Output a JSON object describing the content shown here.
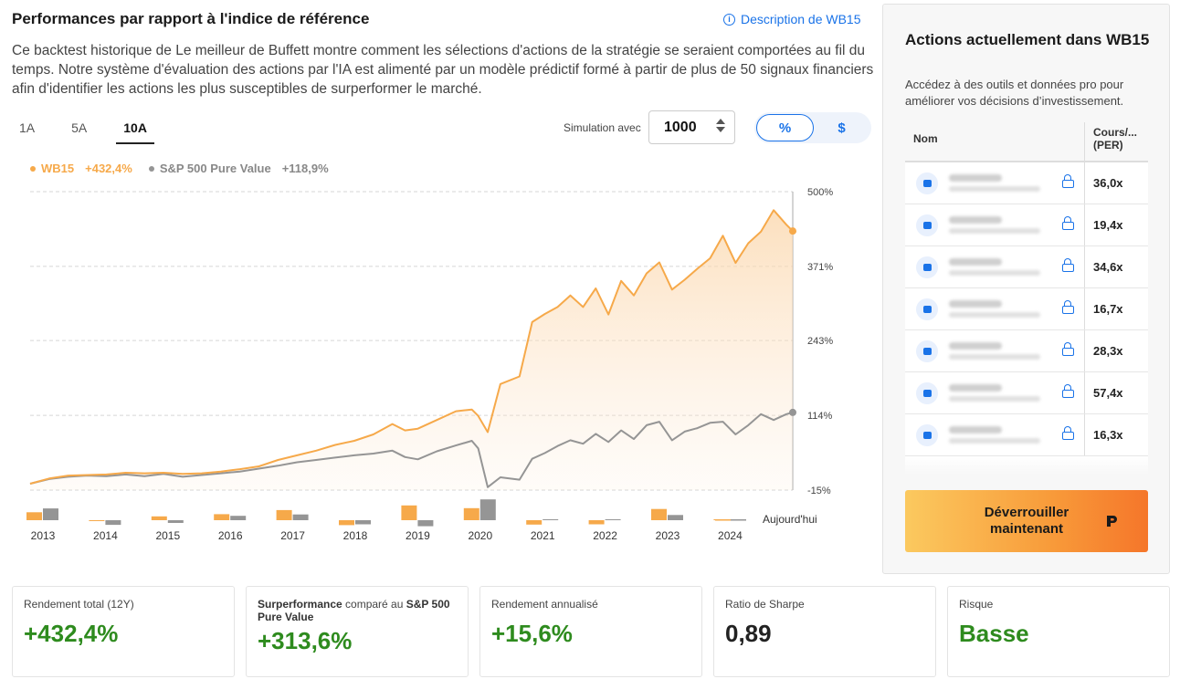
{
  "header": {
    "title": "Performances par rapport à l'indice de référence",
    "desc_link": "Description de WB15",
    "intro": "Ce backtest historique de Le meilleur de Buffett montre comment les sélections d'actions de la stratégie se seraient comportées au fil du temps. Notre système d'évaluation des actions par l'IA est alimenté par un modèle prédictif formé à partir de plus de 50 signaux financiers afin d'identifier les actions les plus susceptibles de surperformer le marché."
  },
  "periods": [
    {
      "label": "1A",
      "active": false
    },
    {
      "label": "5A",
      "active": false
    },
    {
      "label": "10A",
      "active": true
    }
  ],
  "simulation": {
    "label": "Simulation avec",
    "value": "1000"
  },
  "unit_toggle": {
    "percent": "%",
    "dollar": "$",
    "active": "percent"
  },
  "colors": {
    "strategy": "#f6a94a",
    "benchmark": "#959595",
    "accent": "#1a73e8",
    "positive": "#2e8b1e"
  },
  "legend": {
    "strategy_name": "WB15",
    "strategy_value": "+432,4%",
    "benchmark_name": "S&P 500 Pure Value",
    "benchmark_value": "+118,9%"
  },
  "chart_data": {
    "type": "line",
    "x_ticks": [
      "2013",
      "2014",
      "2015",
      "2016",
      "2017",
      "2018",
      "2019",
      "2020",
      "2021",
      "2022",
      "2023",
      "2024",
      "Aujourd'hui"
    ],
    "y_ticks": [
      "500%",
      "371%",
      "243%",
      "114%",
      "-15%"
    ],
    "ylim": [
      -15,
      500
    ],
    "x_range": [
      2013,
      2025.0
    ],
    "grid": true,
    "series": [
      {
        "name": "WB15",
        "x": [
          2013.0,
          2013.3,
          2013.6,
          2013.9,
          2014.2,
          2014.5,
          2014.8,
          2015.1,
          2015.4,
          2015.7,
          2016.0,
          2016.3,
          2016.6,
          2016.9,
          2017.2,
          2017.5,
          2017.8,
          2018.1,
          2018.4,
          2018.7,
          2018.9,
          2019.1,
          2019.4,
          2019.7,
          2019.95,
          2020.05,
          2020.2,
          2020.4,
          2020.7,
          2020.9,
          2021.1,
          2021.3,
          2021.5,
          2021.7,
          2021.9,
          2022.1,
          2022.3,
          2022.5,
          2022.7,
          2022.9,
          2023.1,
          2023.3,
          2023.5,
          2023.7,
          2023.9,
          2024.1,
          2024.3,
          2024.5,
          2024.7,
          2024.9,
          2025.0
        ],
        "values": [
          -4,
          5,
          10,
          11,
          12,
          15,
          14,
          15,
          13,
          14,
          17,
          21,
          26,
          37,
          45,
          53,
          63,
          70,
          81,
          99,
          88,
          91,
          106,
          121,
          124,
          113,
          85,
          168,
          181,
          275,
          289,
          301,
          321,
          301,
          333,
          288,
          346,
          321,
          359,
          378,
          331,
          348,
          367,
          385,
          424,
          377,
          411,
          431,
          468,
          443,
          432
        ]
      },
      {
        "name": "S&P 500 Pure Value",
        "x": [
          2013.0,
          2013.3,
          2013.6,
          2013.9,
          2014.2,
          2014.5,
          2014.8,
          2015.1,
          2015.4,
          2015.7,
          2016.0,
          2016.3,
          2016.6,
          2016.9,
          2017.2,
          2017.5,
          2017.8,
          2018.1,
          2018.4,
          2018.7,
          2018.9,
          2019.1,
          2019.4,
          2019.7,
          2019.95,
          2020.05,
          2020.2,
          2020.4,
          2020.7,
          2020.9,
          2021.1,
          2021.3,
          2021.5,
          2021.7,
          2021.9,
          2022.1,
          2022.3,
          2022.5,
          2022.7,
          2022.9,
          2023.1,
          2023.3,
          2023.5,
          2023.7,
          2023.9,
          2024.1,
          2024.3,
          2024.5,
          2024.7,
          2024.9,
          2025.0
        ],
        "values": [
          -4,
          4,
          8,
          10,
          9,
          12,
          9,
          13,
          8,
          11,
          14,
          17,
          22,
          27,
          33,
          37,
          41,
          45,
          48,
          53,
          42,
          38,
          52,
          62,
          70,
          57,
          -10,
          7,
          3,
          39,
          49,
          61,
          71,
          65,
          82,
          68,
          88,
          73,
          97,
          103,
          71,
          86,
          92,
          101,
          103,
          81,
          97,
          116,
          106,
          116,
          119
        ]
      }
    ],
    "annual_bars": {
      "years": [
        "2013",
        "2014",
        "2015",
        "2016",
        "2017",
        "2018",
        "2019",
        "2020",
        "2021",
        "2022",
        "2023",
        "2024"
      ],
      "strategy": [
        29,
        -1,
        14,
        22,
        37,
        -18,
        54,
        44,
        -16,
        -15,
        41,
        2
      ],
      "benchmark": [
        43,
        -17,
        -10,
        16,
        21,
        -15,
        -22,
        76,
        2,
        0,
        19,
        3
      ]
    }
  },
  "stats": [
    {
      "label": "Rendement total (12Y)",
      "value": "+432,4%",
      "color": "#2e8b1e"
    },
    {
      "label_prefix": "Surperformance",
      "label_mid": " comparé au ",
      "label_suffix": "S&P 500 Pure Value",
      "value": "+313,6%",
      "color": "#2e8b1e"
    },
    {
      "label": "Rendement annualisé",
      "value": "+15,6%",
      "color": "#2e8b1e"
    },
    {
      "label": "Ratio de Sharpe",
      "value": "0,89",
      "color": "#222222"
    },
    {
      "label": "Risque",
      "value": "Basse",
      "color": "#2e8b1e"
    }
  ],
  "sidebar": {
    "title": "Actions actuellement dans WB15",
    "subtitle": "Accédez à des outils et données pro pour améliorer vos décisions d’investissement.",
    "col_name": "Nom",
    "col_per": "Cours/... (PER)",
    "rows": [
      {
        "icon": "shopping-basket-icon",
        "per": "36,0x"
      },
      {
        "icon": "bank-icon",
        "per": "19,4x"
      },
      {
        "icon": "laptop-icon",
        "per": "34,6x"
      },
      {
        "icon": "hospital-icon",
        "per": "16,7x"
      },
      {
        "icon": "cart-icon",
        "per": "28,3x"
      },
      {
        "icon": "truck-icon",
        "per": "57,4x"
      },
      {
        "icon": "cart-icon",
        "per": "16,3x"
      }
    ],
    "cta": "Déverrouiller maintenant"
  }
}
